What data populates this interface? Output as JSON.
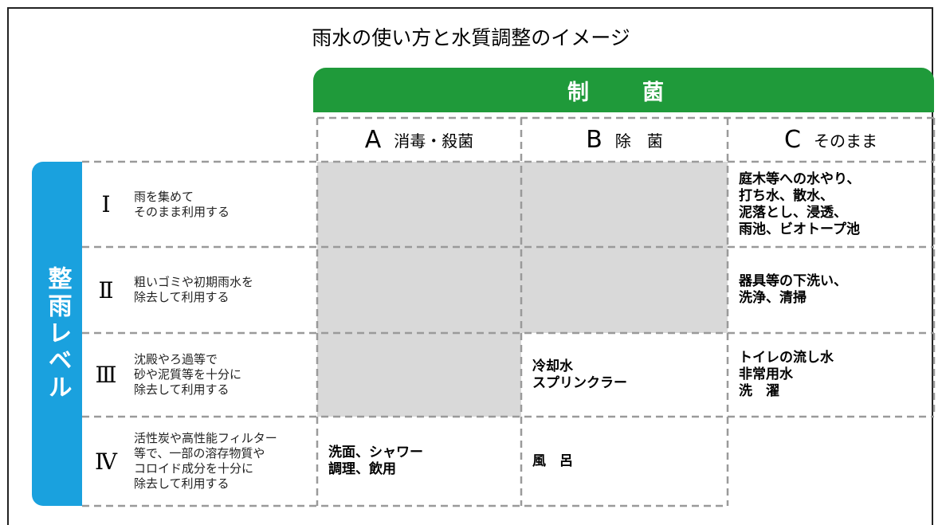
{
  "title": "雨水の使い方と水質調整のイメージ",
  "header": "制　菌",
  "side_label": "整雨レベル",
  "columns": [
    {
      "letter": "A",
      "label": "消毒・殺菌"
    },
    {
      "letter": "B",
      "label": "除　菌"
    },
    {
      "letter": "C",
      "label": "そのまま"
    }
  ],
  "rows": [
    {
      "level": "Ⅰ",
      "description": [
        "雨を集めて",
        "そのまま利用する"
      ],
      "cells": [
        null,
        null,
        [
          "庭木等への水やり、",
          "打ち水、散水、",
          "泥落とし、浸透、",
          "雨池、ビオトープ池"
        ]
      ]
    },
    {
      "level": "Ⅱ",
      "description": [
        "粗いゴミや初期雨水を",
        "除去して利用する"
      ],
      "cells": [
        null,
        null,
        [
          "器具等の下洗い、",
          "洗浄、清掃"
        ]
      ]
    },
    {
      "level": "Ⅲ",
      "description": [
        "沈殿やろ過等で",
        "砂や泥質等を十分に",
        "除去して利用する"
      ],
      "cells": [
        null,
        [
          "冷却水",
          "スプリンクラー"
        ],
        [
          "トイレの流し水",
          "非常用水",
          "洗　濯"
        ]
      ]
    },
    {
      "level": "Ⅳ",
      "description": [
        "活性炭や高性能フィルター",
        "等で、一部の溶存物質や",
        "コロイド成分を十分に",
        "除去して利用する"
      ],
      "cells": [
        [
          "洗面、シャワー",
          "調理、飲用"
        ],
        [
          "風　呂"
        ],
        null
      ]
    }
  ]
}
